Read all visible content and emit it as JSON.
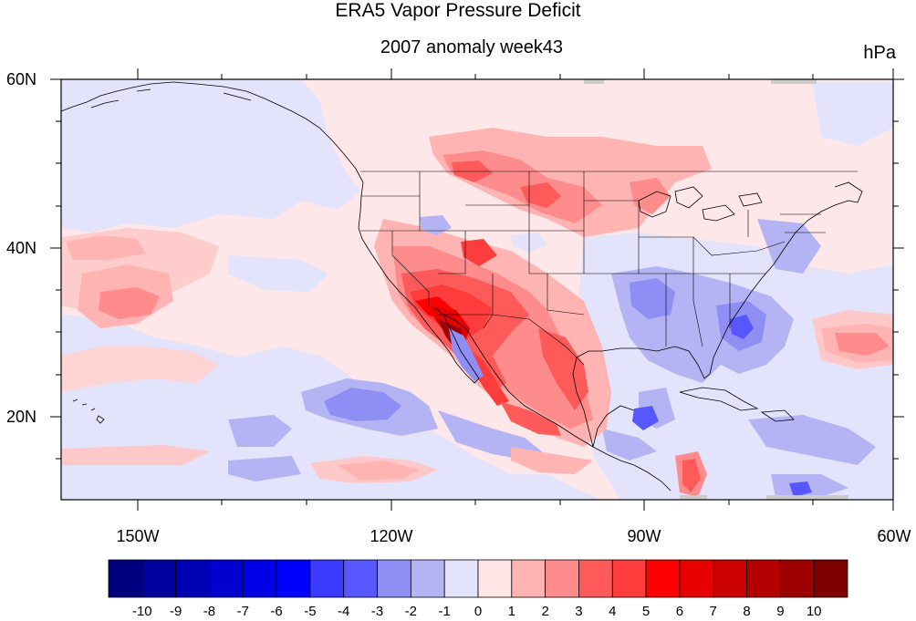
{
  "title": "ERA5 Vapor Pressure Deficit",
  "subtitle": "2007 anomaly week43",
  "units": "hPa",
  "lat_labels": [
    "60N",
    "40N",
    "20N"
  ],
  "lon_labels": [
    "150W",
    "120W",
    "90W",
    "60W"
  ],
  "colorbar": {
    "labels": [
      "-10",
      "-9",
      "-8",
      "-7",
      "-6",
      "-5",
      "-4",
      "-3",
      "-2",
      "-1",
      "0",
      "1",
      "2",
      "3",
      "4",
      "5",
      "6",
      "7",
      "8",
      "9",
      "10"
    ],
    "colors": [
      "#00007f",
      "#00009c",
      "#0000b4",
      "#0000cf",
      "#0000e6",
      "#0000ff",
      "#3a3aff",
      "#5757ff",
      "#8e8ef4",
      "#b4b4f4",
      "#e3e3fb",
      "#ffe6e6",
      "#ffb4b4",
      "#ff8c8c",
      "#ff5a5a",
      "#ff3c3c",
      "#ff0000",
      "#e60000",
      "#cc0000",
      "#b40000",
      "#9c0000",
      "#7f0000"
    ]
  },
  "map": {
    "extent": {
      "lon_min": -159,
      "lon_max": -60,
      "lat_min": 10,
      "lat_max": 60
    },
    "background_anomaly": "-1 to 0",
    "max_anomaly_region": "Southwest US / Baja California",
    "min_anomaly_region": "Gulf of California / Eastern Pacific"
  }
}
